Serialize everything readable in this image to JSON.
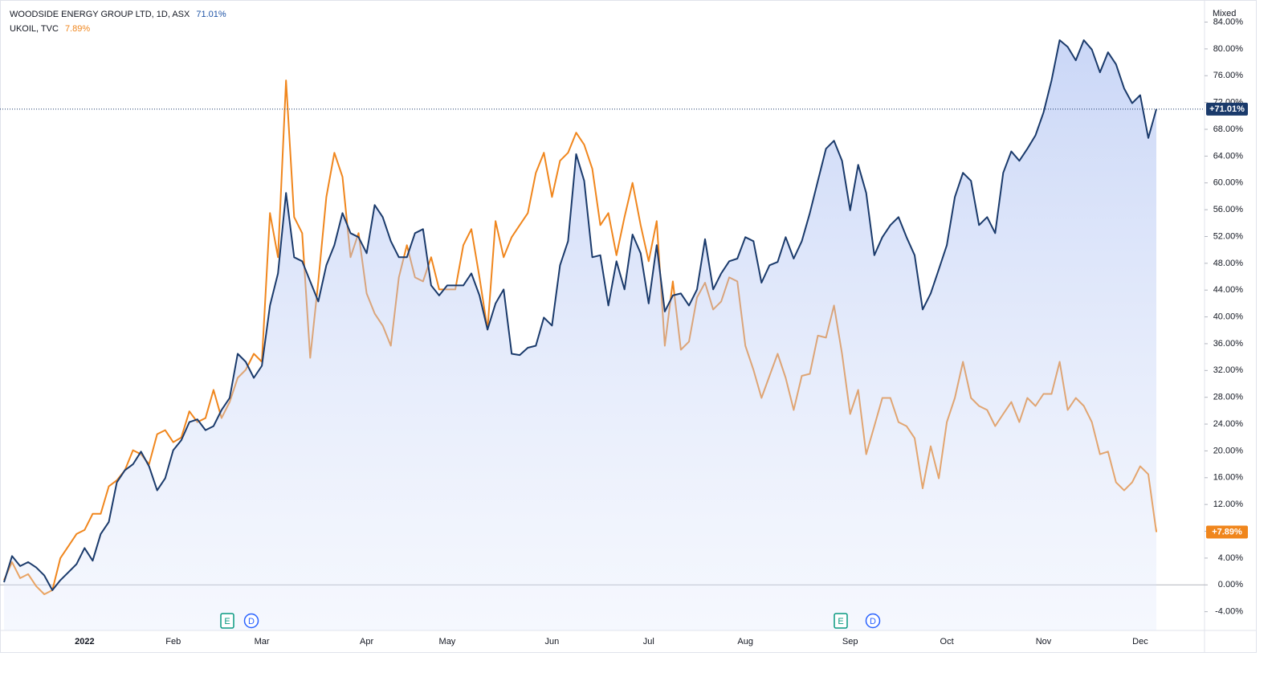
{
  "chart_data": {
    "type": "line",
    "y_axis_label": "Mixed",
    "categories": [
      null,
      null,
      null,
      null,
      null,
      null,
      null,
      null,
      null,
      null,
      "2022",
      null,
      null,
      null,
      null,
      null,
      null,
      null,
      null,
      null,
      null,
      "Feb",
      null,
      null,
      null,
      null,
      null,
      null,
      null,
      null,
      null,
      null,
      "Mar",
      null,
      null,
      null,
      null,
      null,
      null,
      null,
      null,
      null,
      null,
      null,
      null,
      "Apr",
      null,
      null,
      null,
      null,
      null,
      null,
      null,
      null,
      null,
      "May",
      null,
      null,
      null,
      null,
      null,
      null,
      null,
      null,
      null,
      null,
      null,
      null,
      "Jun",
      null,
      null,
      null,
      null,
      null,
      null,
      null,
      null,
      null,
      null,
      null,
      "Jul",
      null,
      null,
      null,
      null,
      null,
      null,
      null,
      null,
      null,
      null,
      null,
      "Aug",
      null,
      null,
      null,
      null,
      null,
      null,
      null,
      null,
      null,
      null,
      null,
      null,
      "Sep",
      null,
      null,
      null,
      null,
      null,
      null,
      null,
      null,
      null,
      null,
      null,
      "Oct",
      null,
      null,
      null,
      null,
      null,
      null,
      null,
      null,
      null,
      null,
      null,
      "Nov",
      null,
      null,
      null,
      null,
      null,
      null,
      null,
      null,
      null,
      null,
      null,
      "Dec",
      null,
      null
    ],
    "series": [
      {
        "name": "WOODSIDE ENERGY GROUP LTD, 1D, ASX",
        "color": "#1a3a6b",
        "legend_label": "71.01%",
        "last_label": "+71.01%",
        "values": [
          0.4,
          4.3,
          2.8,
          3.4,
          2.6,
          1.4,
          -0.8,
          0.7,
          1.9,
          3.1,
          5.5,
          3.6,
          7.6,
          9.4,
          15.3,
          17.1,
          18.0,
          19.9,
          17.7,
          14.1,
          15.9,
          20.1,
          21.6,
          24.3,
          24.7,
          23.1,
          23.7,
          26.1,
          27.9,
          34.5,
          33.3,
          30.9,
          32.7,
          41.7,
          46.5,
          58.5,
          48.9,
          48.3,
          45.3,
          42.3,
          47.7,
          50.7,
          55.5,
          52.5,
          51.9,
          49.5,
          56.7,
          54.9,
          51.3,
          48.9,
          48.9,
          52.5,
          53.1,
          44.7,
          43.2,
          44.7,
          44.7,
          44.7,
          46.5,
          43.2,
          38.1,
          42.0,
          44.1,
          34.5,
          34.3,
          35.4,
          35.7,
          39.9,
          38.7,
          47.7,
          51.3,
          64.3,
          60.3,
          48.9,
          49.2,
          41.7,
          48.3,
          44.1,
          52.3,
          49.5,
          42.0,
          50.7,
          40.8,
          43.2,
          43.5,
          41.7,
          44.1,
          51.6,
          44.1,
          46.5,
          48.3,
          48.7,
          51.9,
          51.3,
          45.1,
          47.7,
          48.2,
          51.9,
          48.7,
          51.3,
          55.5,
          60.3,
          65.1,
          66.3,
          63.3,
          55.9,
          62.7,
          58.5,
          49.2,
          51.9,
          53.7,
          54.9,
          51.9,
          49.2,
          41.1,
          43.5,
          47.1,
          50.7,
          57.9,
          61.5,
          60.3,
          53.7,
          54.9,
          52.5,
          61.5,
          64.7,
          63.3,
          65.1,
          67.1,
          70.5,
          75.3,
          81.3,
          80.3,
          78.3,
          81.3,
          79.9,
          76.5,
          79.5,
          77.7,
          74.1,
          71.9,
          73.1,
          66.7,
          71.01
        ]
      },
      {
        "name": "UKOIL, TVC",
        "color": "#f0861d",
        "legend_label": "7.89%",
        "last_label": "+7.89%",
        "values": [
          0.7,
          3.4,
          1.0,
          1.6,
          -0.2,
          -1.4,
          -0.8,
          4.0,
          5.8,
          7.6,
          8.2,
          10.6,
          10.6,
          14.7,
          15.6,
          17.1,
          20.1,
          19.5,
          18.0,
          22.5,
          23.1,
          21.3,
          22.0,
          25.9,
          24.3,
          24.9,
          29.1,
          24.9,
          27.3,
          30.9,
          32.1,
          34.5,
          33.3,
          55.5,
          48.9,
          75.3,
          54.9,
          52.5,
          33.9,
          45.3,
          57.9,
          64.5,
          60.9,
          48.9,
          52.5,
          43.5,
          40.5,
          38.7,
          35.7,
          45.9,
          50.7,
          45.9,
          45.3,
          48.9,
          44.1,
          44.1,
          44.1,
          50.7,
          53.1,
          45.9,
          38.1,
          54.3,
          48.9,
          51.9,
          53.7,
          55.5,
          61.5,
          64.5,
          57.9,
          63.3,
          64.5,
          67.5,
          65.7,
          62.1,
          53.7,
          55.5,
          49.2,
          54.9,
          60.0,
          53.7,
          48.3,
          54.3,
          35.7,
          45.3,
          35.1,
          36.3,
          42.9,
          45.1,
          41.1,
          42.3,
          45.9,
          45.3,
          35.7,
          32.1,
          27.9,
          31.2,
          34.5,
          30.9,
          26.1,
          31.2,
          31.5,
          37.2,
          36.9,
          41.7,
          34.5,
          25.5,
          29.1,
          19.5,
          23.7,
          27.9,
          27.9,
          24.3,
          23.7,
          21.9,
          14.4,
          20.7,
          15.9,
          24.3,
          27.9,
          33.3,
          27.9,
          26.7,
          26.1,
          23.7,
          25.5,
          27.3,
          24.3,
          27.9,
          26.7,
          28.5,
          28.5,
          33.3,
          26.1,
          27.9,
          26.7,
          24.3,
          19.5,
          19.9,
          15.3,
          14.1,
          15.3,
          17.7,
          16.5,
          7.89
        ]
      }
    ],
    "ylim": [
      -6.8,
      86.7
    ],
    "yticks": [
      {
        "value": -4,
        "label": "-4.00%"
      },
      {
        "value": 0,
        "label": "0.00%"
      },
      {
        "value": 4,
        "label": "4.00%"
      },
      {
        "value": 8,
        "label": "8.00%"
      },
      {
        "value": 12,
        "label": "12.00%"
      },
      {
        "value": 16,
        "label": "16.00%"
      },
      {
        "value": 20,
        "label": "20.00%"
      },
      {
        "value": 24,
        "label": "24.00%"
      },
      {
        "value": 28,
        "label": "28.00%"
      },
      {
        "value": 32,
        "label": "32.00%"
      },
      {
        "value": 36,
        "label": "36.00%"
      },
      {
        "value": 40,
        "label": "40.00%"
      },
      {
        "value": 44,
        "label": "44.00%"
      },
      {
        "value": 48,
        "label": "48.00%"
      },
      {
        "value": 52,
        "label": "52.00%"
      },
      {
        "value": 56,
        "label": "56.00%"
      },
      {
        "value": 60,
        "label": "60.00%"
      },
      {
        "value": 64,
        "label": "64.00%"
      },
      {
        "value": 68,
        "label": "68.00%"
      },
      {
        "value": 72,
        "label": "72.00%"
      },
      {
        "value": 76,
        "label": "76.00%"
      },
      {
        "value": 80,
        "label": "80.00%"
      },
      {
        "value": 84,
        "label": "84.00%"
      }
    ],
    "events": [
      "E",
      "D",
      "E",
      "D"
    ],
    "grid": false
  }
}
